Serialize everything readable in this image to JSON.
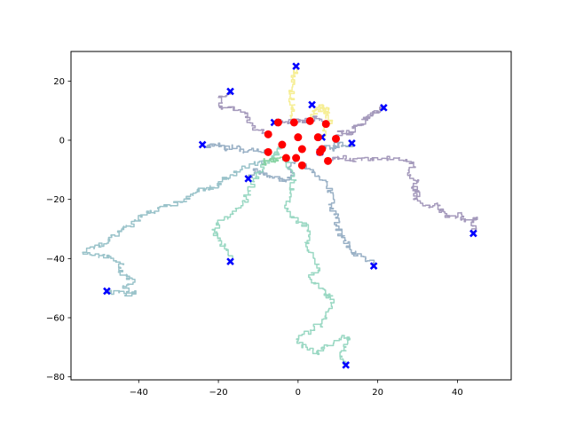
{
  "chart_data": {
    "type": "line",
    "title": "",
    "xlabel": "",
    "ylabel": "",
    "xlim": [
      -57,
      53.5
    ],
    "ylim": [
      -81,
      30
    ],
    "xticks": [
      -40,
      -20,
      0,
      20,
      40
    ],
    "yticks": [
      -80,
      -60,
      -40,
      -20,
      0,
      20
    ],
    "xtick_labels": [
      "−40",
      "−20",
      "0",
      "20",
      "40"
    ],
    "ytick_labels": [
      "−80",
      "−60",
      "−40",
      "−20",
      "0",
      "20"
    ],
    "grid": false,
    "legend": "none",
    "series": [
      {
        "color": "#f5ec8a",
        "start": [
          -1,
          6
        ],
        "points": [
          [
            -1,
            6
          ],
          [
            -1.5,
            9
          ],
          [
            -1,
            12
          ],
          [
            -2,
            15
          ],
          [
            -1.5,
            18
          ],
          [
            -1,
            20.5
          ],
          [
            -0.8,
            22.5
          ],
          [
            -0.5,
            25
          ]
        ]
      },
      {
        "color": "#f5ec8a",
        "start": [
          3,
          6.5
        ],
        "points": [
          [
            3,
            6.5
          ],
          [
            4,
            9
          ],
          [
            4.5,
            11
          ],
          [
            5.5,
            10
          ],
          [
            6,
            12
          ],
          [
            6.5,
            9
          ],
          [
            7,
            11
          ],
          [
            7.5,
            8.5
          ],
          [
            8,
            6.5
          ],
          [
            6.5,
            4
          ],
          [
            6,
            1
          ]
        ]
      },
      {
        "color": "#9b8fb5",
        "start": [
          9.5,
          0.5
        ],
        "points": [
          [
            9.5,
            0.5
          ],
          [
            11,
            3
          ],
          [
            13,
            2
          ],
          [
            14,
            5
          ],
          [
            16,
            5.5
          ],
          [
            17,
            7.5
          ],
          [
            18,
            7.5
          ],
          [
            19,
            9.5
          ],
          [
            20,
            9.5
          ],
          [
            21.5,
            11
          ]
        ]
      },
      {
        "color": "#9b8fb5",
        "start": [
          7.5,
          -7
        ],
        "points": [
          [
            7.5,
            -7
          ],
          [
            10,
            -5.5
          ],
          [
            13,
            -7
          ],
          [
            16,
            -6
          ],
          [
            20,
            -6.5
          ],
          [
            24,
            -6
          ],
          [
            27,
            -6.5
          ],
          [
            29,
            -9
          ],
          [
            28,
            -12
          ],
          [
            30,
            -14
          ],
          [
            28.5,
            -16
          ],
          [
            30.5,
            -18
          ],
          [
            29,
            -20
          ],
          [
            32,
            -22
          ],
          [
            35,
            -22
          ],
          [
            36,
            -24
          ],
          [
            38,
            -26
          ],
          [
            41,
            -25
          ],
          [
            42,
            -27.5
          ],
          [
            45,
            -26
          ],
          [
            44,
            -29
          ],
          [
            44,
            -31.5
          ]
        ]
      },
      {
        "color": "#9b8fb5",
        "start": [
          7,
          5.5
        ],
        "points": [
          [
            7,
            5.5
          ],
          [
            4.5,
            8
          ],
          [
            3,
            6.5
          ],
          [
            0.5,
            7
          ],
          [
            -2,
            6
          ],
          [
            -4,
            6.5
          ],
          [
            -6,
            6
          ]
        ]
      },
      {
        "color": "#9b8fb5",
        "start": [
          -7.5,
          2
        ],
        "points": [
          [
            -7.5,
            2
          ],
          [
            -10,
            3.5
          ],
          [
            -12,
            6
          ],
          [
            -13,
            9
          ],
          [
            -16,
            10.5
          ],
          [
            -19,
            11
          ],
          [
            -20,
            14.5
          ],
          [
            -17,
            16.5
          ]
        ]
      },
      {
        "color": "#8fa8c0",
        "start": [
          5.5,
          -4
        ],
        "points": [
          [
            5.5,
            -4
          ],
          [
            7,
            -2
          ],
          [
            9,
            -3
          ],
          [
            10,
            -1
          ],
          [
            12,
            -2
          ],
          [
            13.5,
            -1
          ]
        ]
      },
      {
        "color": "#8fa8c0",
        "start": [
          -7.5,
          -4
        ],
        "points": [
          [
            -7.5,
            -4
          ],
          [
            -10,
            -3
          ],
          [
            -13,
            -4
          ],
          [
            -15,
            -2
          ],
          [
            -18,
            -3
          ],
          [
            -20,
            -1
          ],
          [
            -22,
            -2.5
          ],
          [
            -24,
            -1.5
          ]
        ]
      },
      {
        "color": "#8fa8c0",
        "start": [
          -0.5,
          -6
        ],
        "points": [
          [
            -0.5,
            -6
          ],
          [
            -2,
            -9
          ],
          [
            -1,
            -12
          ],
          [
            -3,
            -14
          ],
          [
            -5,
            -13
          ],
          [
            -7,
            -12
          ],
          [
            -9,
            -11
          ],
          [
            -11,
            -10
          ],
          [
            -12.5,
            -13
          ]
        ]
      },
      {
        "color": "#8fa8c0",
        "start": [
          1,
          -8.5
        ],
        "points": [
          [
            1,
            -8.5
          ],
          [
            3,
            -10
          ],
          [
            5,
            -12
          ],
          [
            7,
            -14
          ],
          [
            8,
            -17
          ],
          [
            9,
            -20
          ],
          [
            8,
            -23
          ],
          [
            10,
            -26
          ],
          [
            9.5,
            -29
          ],
          [
            11,
            -32
          ],
          [
            12,
            -34
          ],
          [
            13,
            -37
          ],
          [
            15,
            -39
          ],
          [
            17,
            -40
          ],
          [
            19,
            -42.5
          ]
        ]
      },
      {
        "color": "#8fbcc4",
        "start": [
          -8,
          -7
        ],
        "points": [
          [
            -8,
            -7
          ],
          [
            -11,
            -8
          ],
          [
            -14,
            -10
          ],
          [
            -17,
            -12
          ],
          [
            -19,
            -14
          ],
          [
            -21,
            -16
          ],
          [
            -23,
            -16.5
          ],
          [
            -25,
            -17
          ],
          [
            -27,
            -19
          ],
          [
            -29,
            -21
          ],
          [
            -32,
            -22
          ],
          [
            -35,
            -24
          ],
          [
            -38,
            -24
          ],
          [
            -40,
            -27
          ],
          [
            -42,
            -29
          ],
          [
            -44,
            -30
          ],
          [
            -46,
            -32
          ],
          [
            -48,
            -35
          ],
          [
            -51,
            -36
          ],
          [
            -54,
            -38.5
          ],
          [
            -50,
            -39
          ],
          [
            -47,
            -40
          ],
          [
            -44,
            -42
          ],
          [
            -45,
            -44
          ],
          [
            -43,
            -46
          ],
          [
            -41,
            -48
          ],
          [
            -44,
            -50
          ],
          [
            -41,
            -52
          ],
          [
            -45,
            -51.5
          ],
          [
            -48,
            -51
          ]
        ]
      },
      {
        "color": "#8fd4bc",
        "start": [
          -4,
          -1.5
        ],
        "points": [
          [
            -4,
            -1.5
          ],
          [
            -5,
            -4
          ],
          [
            -6,
            -7
          ],
          [
            -8,
            -8
          ],
          [
            -10,
            -11
          ],
          [
            -11,
            -14
          ],
          [
            -12,
            -17
          ],
          [
            -13,
            -20
          ],
          [
            -15,
            -23
          ],
          [
            -17,
            -26
          ],
          [
            -20,
            -28
          ],
          [
            -21,
            -31
          ],
          [
            -20,
            -34
          ],
          [
            -18,
            -37
          ],
          [
            -17,
            -41
          ]
        ]
      },
      {
        "color": "#8fd4bc",
        "start": [
          -3,
          -6
        ],
        "points": [
          [
            -3,
            -6
          ],
          [
            -2,
            -10
          ],
          [
            -1,
            -14
          ],
          [
            -2,
            -18
          ],
          [
            -3,
            -22
          ],
          [
            -2,
            -26
          ],
          [
            1,
            -28
          ],
          [
            3,
            -32
          ],
          [
            2,
            -36
          ],
          [
            4,
            -40
          ],
          [
            5,
            -44
          ],
          [
            3,
            -47
          ],
          [
            6,
            -50
          ],
          [
            7,
            -53
          ],
          [
            8,
            -52
          ],
          [
            9,
            -55
          ],
          [
            7,
            -58
          ],
          [
            6,
            -62
          ],
          [
            4,
            -64
          ],
          [
            1,
            -66
          ],
          [
            0,
            -68
          ],
          [
            2,
            -70
          ],
          [
            5,
            -72
          ],
          [
            6,
            -70
          ],
          [
            9,
            -68
          ],
          [
            11,
            -66
          ],
          [
            13,
            -67
          ],
          [
            12,
            -70
          ],
          [
            11,
            -73
          ],
          [
            12,
            -76
          ]
        ]
      },
      {
        "color": "#7ed09a",
        "start": [
          -3,
          -6
        ],
        "points": [
          [
            -3,
            -6
          ],
          [
            -5,
            -7
          ],
          [
            -7,
            -6.5
          ],
          [
            -9,
            -8
          ]
        ]
      }
    ],
    "start_markers": {
      "color": "#ff0000",
      "shape": "circle",
      "points": [
        [
          -1,
          6
        ],
        [
          3,
          6.5
        ],
        [
          9.5,
          0.5
        ],
        [
          7.5,
          -7
        ],
        [
          7,
          5.5
        ],
        [
          -7.5,
          2
        ],
        [
          5.5,
          -4
        ],
        [
          -7.5,
          -4
        ],
        [
          -0.5,
          -6
        ],
        [
          1,
          -8.5
        ],
        [
          -4,
          -1.5
        ],
        [
          -3,
          -6
        ],
        [
          0,
          1
        ],
        [
          5,
          1
        ],
        [
          1,
          -3
        ],
        [
          6,
          -3
        ],
        [
          -5,
          6
        ]
      ]
    },
    "end_markers": {
      "color": "#0000ff",
      "shape": "x",
      "points": [
        [
          -0.5,
          25
        ],
        [
          3.5,
          12
        ],
        [
          21.5,
          11
        ],
        [
          44,
          -31.5
        ],
        [
          -6,
          6
        ],
        [
          -17,
          16.5
        ],
        [
          13.5,
          -1
        ],
        [
          -24,
          -1.5
        ],
        [
          -12.5,
          -13
        ],
        [
          19,
          -42.5
        ],
        [
          -48,
          -51
        ],
        [
          -17,
          -41
        ],
        [
          12,
          -76
        ],
        [
          6,
          1
        ],
        [
          5.5,
          -4
        ]
      ]
    }
  }
}
